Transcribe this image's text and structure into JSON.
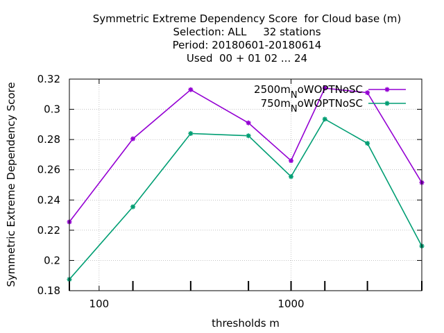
{
  "chart_data": {
    "type": "line",
    "title_lines": [
      "Symmetric Extreme Dependency Score  for Cloud base (m)",
      "Selection: ALL     32 stations",
      "Period: 20180601-20180614",
      "Used  00 + 01 02 ... 24"
    ],
    "xlabel": "thresholds m",
    "ylabel": "Symmetric Extreme Dependency Score",
    "x_scale": "log",
    "xlim": [
      70,
      4800
    ],
    "ylim": [
      0.18,
      0.32
    ],
    "x_tick_labels": [
      "100",
      "1000"
    ],
    "y_tick_labels": [
      "0.18",
      "0.2",
      "0.22",
      "0.24",
      "0.26",
      "0.28",
      "0.3",
      "0.32"
    ],
    "grid": true,
    "legend_position": "top-right",
    "x": [
      70,
      150,
      300,
      600,
      1000,
      1500,
      2500,
      4800
    ],
    "series": [
      {
        "name": "2500m",
        "name_sub": "N",
        "name_suffix": "oWOPTNoSC",
        "color": "#9400d3",
        "values": [
          0.2255,
          0.2805,
          0.313,
          0.291,
          0.266,
          0.314,
          0.311,
          0.2515
        ]
      },
      {
        "name": "750m",
        "name_sub": "N",
        "name_suffix": "oWOPTNoSC",
        "color": "#009e73",
        "values": [
          0.1875,
          0.2355,
          0.284,
          0.2825,
          0.2555,
          0.2935,
          0.2775,
          0.2095
        ]
      }
    ]
  }
}
